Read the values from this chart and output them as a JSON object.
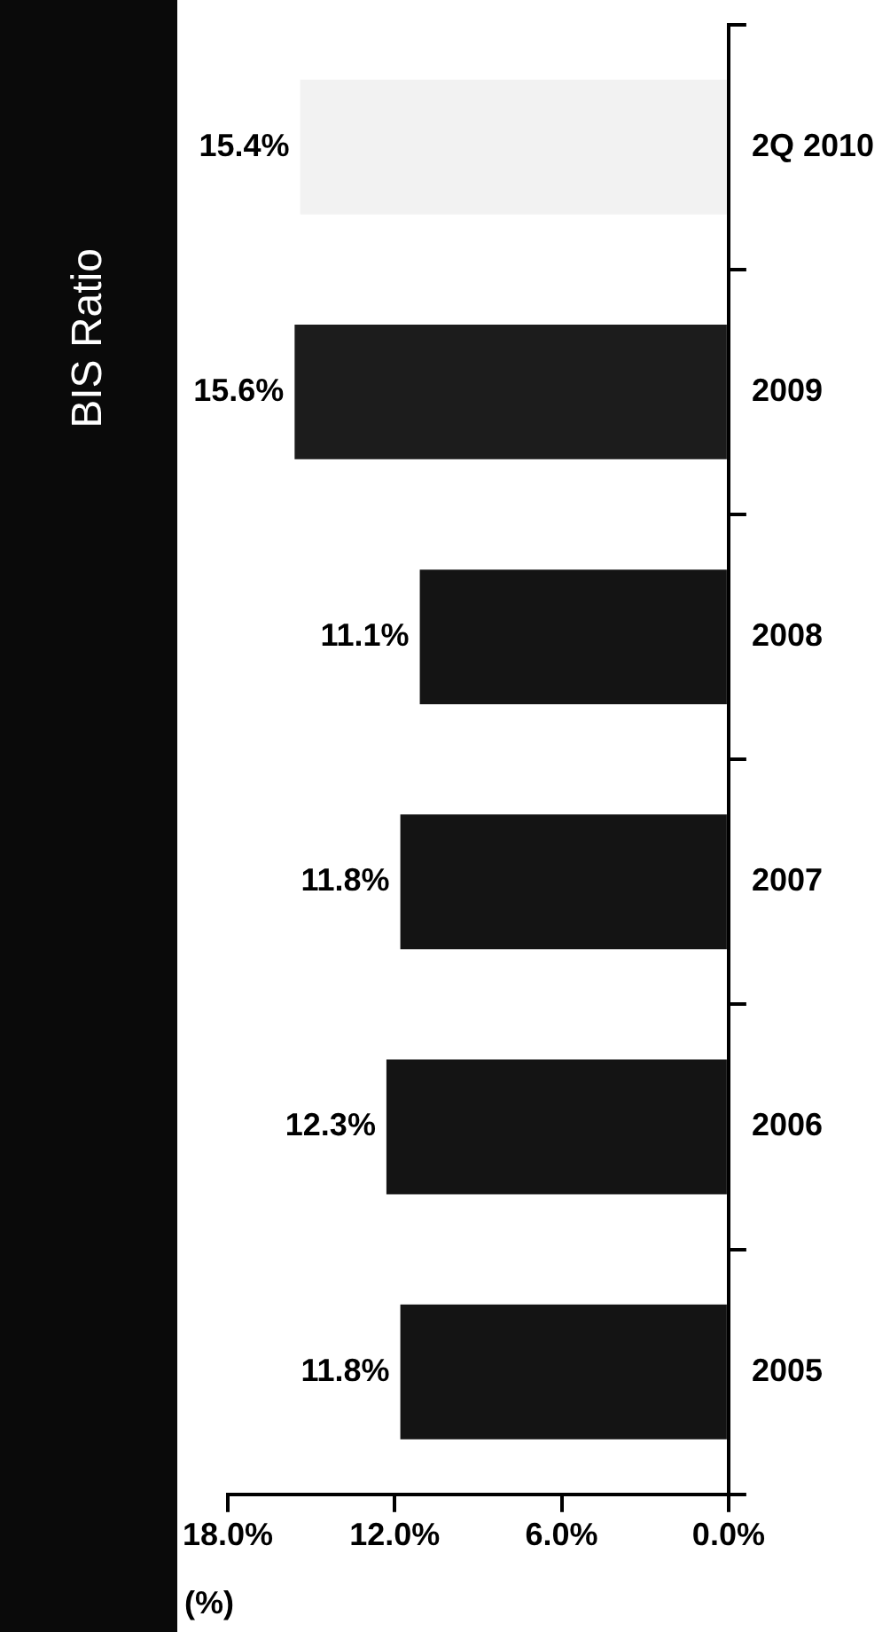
{
  "chart_data": {
    "type": "bar",
    "orientation": "horizontal",
    "title": "BIS Ratio",
    "ylabel": "(%)",
    "categories": [
      "2Q 2010",
      "2009",
      "2008",
      "2007",
      "2006",
      "2005"
    ],
    "values": [
      15.4,
      15.6,
      11.1,
      11.8,
      12.3,
      11.8
    ],
    "value_labels": [
      "15.4%",
      "15.6%",
      "11.1%",
      "11.8%",
      "12.3%",
      "11.8%"
    ],
    "colors": [
      "#f2f2f2",
      "#1c1c1c",
      "#141414",
      "#141414",
      "#141414",
      "#141414"
    ],
    "xlim": [
      18,
      0
    ],
    "xticks": [
      {
        "value": 18,
        "label": "18.0%"
      },
      {
        "value": 12,
        "label": "12.0%"
      },
      {
        "value": 6,
        "label": "6.0%"
      },
      {
        "value": 0,
        "label": "0.0%"
      }
    ],
    "grid": false,
    "legend": false
  }
}
